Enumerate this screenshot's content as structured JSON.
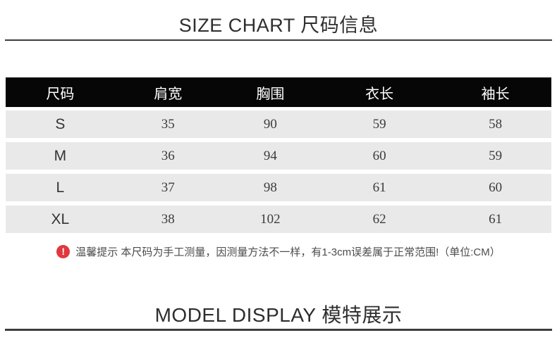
{
  "size_chart": {
    "title": "SIZE CHART 尺码信息",
    "table": {
      "headers": [
        "尺码",
        "肩宽",
        "胸围",
        "衣长",
        "袖长"
      ],
      "rows": [
        {
          "size": "S",
          "values": [
            "35",
            "90",
            "59",
            "58"
          ]
        },
        {
          "size": "M",
          "values": [
            "36",
            "94",
            "60",
            "59"
          ]
        },
        {
          "size": "L",
          "values": [
            "37",
            "98",
            "61",
            "60"
          ]
        },
        {
          "size": "XL",
          "values": [
            "38",
            "102",
            "62",
            "61"
          ]
        }
      ],
      "unit": "CM"
    },
    "note": {
      "icon": "exclamation-circle-icon",
      "icon_glyph": "!",
      "text": "温馨提示 本尺码为手工测量，因测量方法不一样，有1-3cm误差属于正常范围!（单位:CM）"
    }
  },
  "model_display": {
    "title": "MODEL DISPLAY 模特展示"
  },
  "colors": {
    "header_bg": "#060606",
    "header_text": "#ffffff",
    "row_bg": "#e9e9e9",
    "rule": "#3d3d3d",
    "note_icon_bg": "#e1383e",
    "body_text": "#333333"
  }
}
